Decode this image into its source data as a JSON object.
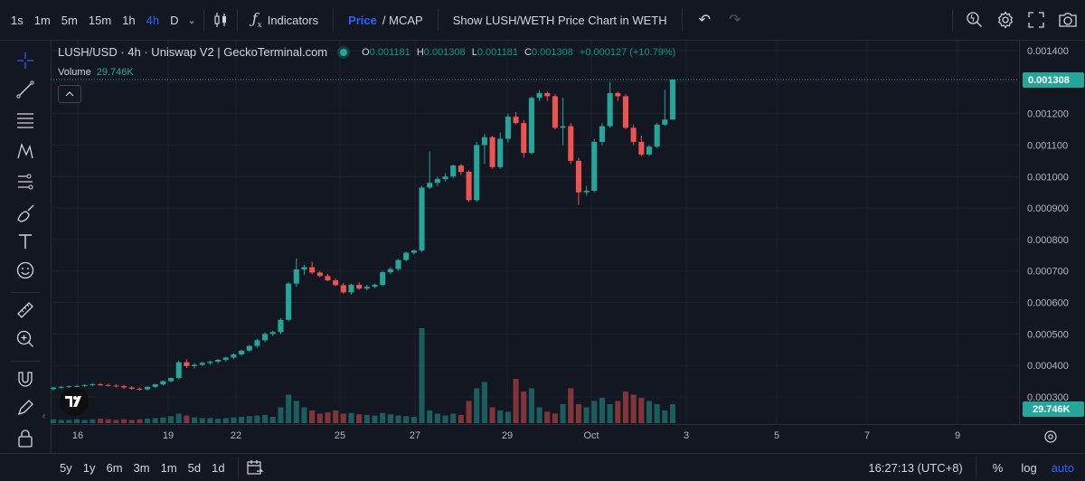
{
  "toolbar": {
    "timeframes": [
      "1s",
      "1m",
      "5m",
      "15m",
      "1h",
      "4h",
      "D"
    ],
    "active_timeframe": "4h",
    "indicators_label": "Indicators",
    "price_label": "Price",
    "mcap_label": "/ MCAP",
    "show_weth_label": "Show LUSH/WETH Price Chart in WETH"
  },
  "legend": {
    "symbol": "LUSH/USD · 4h · Uniswap V2 | GeckoTerminal.com",
    "o_label": "O",
    "o": "0.001181",
    "h_label": "H",
    "h": "0.001308",
    "l_label": "L",
    "l": "0.001181",
    "c_label": "C",
    "c": "0.001308",
    "change": "+0.000127 (+10.79%)",
    "volume_label": "Volume",
    "volume_value": "29.746K"
  },
  "price_axis": {
    "ticks": [
      "0.001400",
      "0.001300",
      "0.001200",
      "0.001100",
      "0.001000",
      "0.000900",
      "0.000800",
      "0.000700",
      "0.000600",
      "0.000500",
      "0.000400",
      "0.000300"
    ],
    "last_price_label": "0.001308",
    "volume_label": "29.746K"
  },
  "time_axis": {
    "ticks": [
      "16",
      "19",
      "22",
      "25",
      "27",
      "29",
      "Oct",
      "3",
      "5",
      "7",
      "9"
    ]
  },
  "bottom": {
    "ranges": [
      "5y",
      "1y",
      "6m",
      "3m",
      "1m",
      "5d",
      "1d"
    ],
    "clock": "16:27:13 (UTC+8)",
    "percent_label": "%",
    "log_label": "log",
    "auto_label": "auto"
  },
  "colors": {
    "up": "#26a69a",
    "down": "#ef5350",
    "accent": "#2962ff",
    "background": "#131722"
  },
  "chart_data": {
    "type": "candlestick",
    "price_range": [
      0.00025,
      0.00143
    ],
    "series": [
      {
        "name": "LUSH/USD",
        "ohlc": [
          [
            0.000325,
            0.000332,
            0.00032,
            0.00033
          ],
          [
            0.00033,
            0.000335,
            0.000326,
            0.000332
          ],
          [
            0.000332,
            0.000336,
            0.000328,
            0.000334
          ],
          [
            0.000334,
            0.000338,
            0.00033,
            0.000335
          ],
          [
            0.000335,
            0.00034,
            0.000331,
            0.000338
          ],
          [
            0.000338,
            0.000344,
            0.000334,
            0.00034
          ],
          [
            0.00034,
            0.000344,
            0.000335,
            0.000338
          ],
          [
            0.000338,
            0.000342,
            0.000333,
            0.000336
          ],
          [
            0.000336,
            0.00034,
            0.00033,
            0.000334
          ],
          [
            0.000334,
            0.000338,
            0.000325,
            0.00033
          ],
          [
            0.00033,
            0.000334,
            0.000322,
            0.000326
          ],
          [
            0.000326,
            0.00033,
            0.00032,
            0.000324
          ],
          [
            0.000324,
            0.000334,
            0.00032,
            0.000332
          ],
          [
            0.000332,
            0.000342,
            0.000328,
            0.00034
          ],
          [
            0.00034,
            0.000352,
            0.000336,
            0.00035
          ],
          [
            0.00035,
            0.000362,
            0.000346,
            0.00036
          ],
          [
            0.00036,
            0.000415,
            0.000356,
            0.00041
          ],
          [
            0.00041,
            0.00042,
            0.000392,
            0.000398
          ],
          [
            0.000398,
            0.000408,
            0.00039,
            0.000402
          ],
          [
            0.000402,
            0.000412,
            0.000398,
            0.000408
          ],
          [
            0.000408,
            0.000416,
            0.000402,
            0.000412
          ],
          [
            0.000412,
            0.00042,
            0.000406,
            0.000418
          ],
          [
            0.000418,
            0.000428,
            0.000412,
            0.000425
          ],
          [
            0.000425,
            0.000438,
            0.00042,
            0.000435
          ],
          [
            0.000435,
            0.00045,
            0.00043,
            0.000447
          ],
          [
            0.000447,
            0.000465,
            0.000442,
            0.000462
          ],
          [
            0.000462,
            0.000485,
            0.000456,
            0.00048
          ],
          [
            0.00048,
            0.000505,
            0.000474,
            0.0005
          ],
          [
            0.0005,
            0.00051,
            0.000494,
            0.000506
          ],
          [
            0.000506,
            0.00055,
            0.0005,
            0.000545
          ],
          [
            0.000545,
            0.000665,
            0.00054,
            0.00066
          ],
          [
            0.00066,
            0.00074,
            0.00065,
            0.000705
          ],
          [
            0.000705,
            0.00072,
            0.000688,
            0.000712
          ],
          [
            0.000712,
            0.00073,
            0.00069,
            0.000695
          ],
          [
            0.000695,
            0.0007,
            0.00068,
            0.000684
          ],
          [
            0.000684,
            0.00069,
            0.000668,
            0.00067
          ],
          [
            0.00067,
            0.000676,
            0.000652,
            0.000655
          ],
          [
            0.000655,
            0.000662,
            0.000628,
            0.000632
          ],
          [
            0.000632,
            0.00066,
            0.000625,
            0.000656
          ],
          [
            0.000656,
            0.000664,
            0.00064,
            0.000644
          ],
          [
            0.000644,
            0.000656,
            0.000638,
            0.00065
          ],
          [
            0.00065,
            0.00066,
            0.000645,
            0.000656
          ],
          [
            0.000656,
            0.0007,
            0.000652,
            0.000696
          ],
          [
            0.000696,
            0.000712,
            0.00069,
            0.000706
          ],
          [
            0.000706,
            0.000738,
            0.0007,
            0.000735
          ],
          [
            0.000735,
            0.000762,
            0.00073,
            0.000758
          ],
          [
            0.000758,
            0.000768,
            0.000752,
            0.000765
          ],
          [
            0.000765,
            0.00097,
            0.00076,
            0.000965
          ],
          [
            0.000965,
            0.00108,
            0.00096,
            0.00098
          ],
          [
            0.00098,
            0.001,
            0.00097,
            0.000992
          ],
          [
            0.000992,
            0.00101,
            0.000985,
            0.001
          ],
          [
            0.001,
            0.001038,
            0.000995,
            0.001035
          ],
          [
            0.001035,
            0.00104,
            0.001005,
            0.001015
          ],
          [
            0.001015,
            0.00102,
            0.00092,
            0.000925
          ],
          [
            0.000925,
            0.00111,
            0.00092,
            0.0011
          ],
          [
            0.0011,
            0.001135,
            0.00104,
            0.001125
          ],
          [
            0.001125,
            0.00113,
            0.001025,
            0.00103
          ],
          [
            0.00103,
            0.00114,
            0.001025,
            0.00112
          ],
          [
            0.00112,
            0.0012,
            0.001108,
            0.00119
          ],
          [
            0.00119,
            0.001205,
            0.001165,
            0.00117
          ],
          [
            0.00117,
            0.00118,
            0.00106,
            0.001075
          ],
          [
            0.001075,
            0.001255,
            0.00107,
            0.00125
          ],
          [
            0.00125,
            0.001275,
            0.00124,
            0.001265
          ],
          [
            0.001265,
            0.00127,
            0.00124,
            0.001255
          ],
          [
            0.001255,
            0.001262,
            0.00115,
            0.001155
          ],
          [
            0.001155,
            0.00125,
            0.0011,
            0.00116
          ],
          [
            0.00116,
            0.00117,
            0.00104,
            0.00105
          ],
          [
            0.00105,
            0.00106,
            0.00091,
            0.00095
          ],
          [
            0.00095,
            0.00097,
            0.00094,
            0.000955
          ],
          [
            0.000955,
            0.00112,
            0.00095,
            0.00111
          ],
          [
            0.00111,
            0.00117,
            0.0011,
            0.00116
          ],
          [
            0.00116,
            0.0013,
            0.001155,
            0.001265
          ],
          [
            0.001265,
            0.00127,
            0.00124,
            0.001255
          ],
          [
            0.001255,
            0.001262,
            0.00115,
            0.001155
          ],
          [
            0.001155,
            0.001165,
            0.0011,
            0.00111
          ],
          [
            0.00111,
            0.00113,
            0.001065,
            0.00107
          ],
          [
            0.00107,
            0.0011,
            0.001065,
            0.001095
          ],
          [
            0.001095,
            0.00117,
            0.00109,
            0.001165
          ],
          [
            0.001165,
            0.001275,
            0.00116,
            0.001181
          ],
          [
            0.001181,
            0.001308,
            0.001181,
            0.001308
          ]
        ]
      }
    ],
    "volume": {
      "name": "Volume",
      "values": [
        0.6,
        0.5,
        0.5,
        0.6,
        0.5,
        0.6,
        0.7,
        0.6,
        0.5,
        0.6,
        0.5,
        0.6,
        0.7,
        0.8,
        0.9,
        1.1,
        1.5,
        1.2,
        0.9,
        0.8,
        0.8,
        0.7,
        0.8,
        0.9,
        1.0,
        1.1,
        1.2,
        1.3,
        1.0,
        2.5,
        4.5,
        3.5,
        2.5,
        2.0,
        1.5,
        1.7,
        2.0,
        1.5,
        1.6,
        1.4,
        1.3,
        1.2,
        1.6,
        1.4,
        1.2,
        1.1,
        1.0,
        15.0,
        2.0,
        1.5,
        1.2,
        1.5,
        1.3,
        3.5,
        5.5,
        6.5,
        2.5,
        2.0,
        1.8,
        7.0,
        5.0,
        5.5,
        2.5,
        1.8,
        1.5,
        3.0,
        5.5,
        3.0,
        2.5,
        3.5,
        4.0,
        3.0,
        3.5,
        5.0,
        4.5,
        4.0,
        3.5,
        3.0,
        2.0,
        3.0
      ]
    },
    "x_ticks": [
      "16",
      "19",
      "22",
      "25",
      "27",
      "29",
      "Oct",
      "3",
      "5",
      "7",
      "9"
    ],
    "last_price": 0.001308,
    "last_volume": "29.746K"
  }
}
